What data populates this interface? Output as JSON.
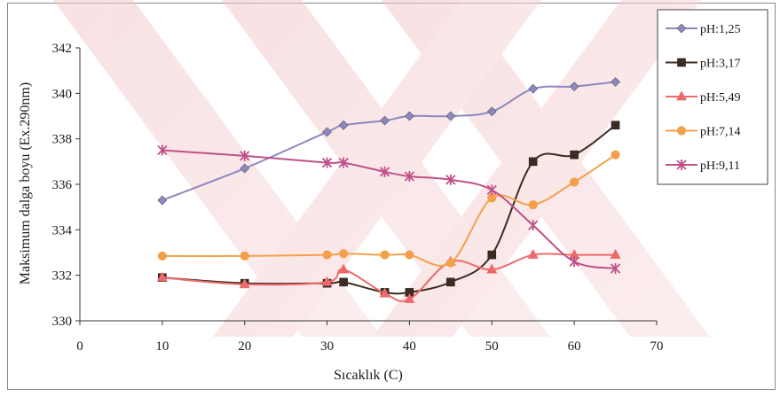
{
  "chart_data": {
    "type": "line",
    "xlabel": "Sıcaklık (C)",
    "ylabel": "Maksimum dalga boyu (Ex.290nm)",
    "xlim": [
      0,
      70
    ],
    "ylim": [
      330,
      342
    ],
    "xticks": [
      0,
      10,
      20,
      30,
      40,
      50,
      60,
      70
    ],
    "yticks": [
      330,
      332,
      334,
      336,
      338,
      340,
      342
    ],
    "grid": false,
    "smooth": true,
    "legend_position": "right",
    "series": [
      {
        "name": "pH:1,25",
        "color": "#8b88c2",
        "marker": "diamond",
        "x": [
          10,
          20,
          30,
          32,
          37,
          40,
          45,
          50,
          55,
          60,
          65
        ],
        "y": [
          335.3,
          336.7,
          338.3,
          338.6,
          338.8,
          339.0,
          339.0,
          339.2,
          340.2,
          340.3,
          340.5
        ]
      },
      {
        "name": "pH:3,17",
        "color": "#3e2b22",
        "marker": "square",
        "x": [
          10,
          20,
          30,
          32,
          37,
          40,
          45,
          50,
          55,
          60,
          65
        ],
        "y": [
          331.9,
          331.65,
          331.65,
          331.7,
          331.25,
          331.25,
          331.7,
          332.9,
          337.0,
          337.3,
          338.6
        ]
      },
      {
        "name": "pH:5,49",
        "color": "#ee6a6a",
        "marker": "triangle",
        "x": [
          10,
          20,
          30,
          32,
          37,
          40,
          45,
          50,
          55,
          60,
          65
        ],
        "y": [
          331.9,
          331.6,
          331.7,
          332.25,
          331.2,
          330.95,
          332.6,
          332.25,
          332.9,
          332.9,
          332.9
        ]
      },
      {
        "name": "pH:7,14",
        "color": "#f4a04a",
        "marker": "circle",
        "x": [
          10,
          20,
          30,
          32,
          37,
          40,
          45,
          50,
          55,
          60,
          65
        ],
        "y": [
          332.85,
          332.85,
          332.9,
          332.95,
          332.9,
          332.9,
          332.55,
          335.4,
          335.1,
          336.1,
          337.3
        ]
      },
      {
        "name": "pH:9,11",
        "color": "#c0508a",
        "marker": "star",
        "x": [
          10,
          20,
          30,
          32,
          37,
          40,
          45,
          50,
          55,
          60,
          65
        ],
        "y": [
          337.5,
          337.25,
          336.95,
          336.95,
          336.55,
          336.35,
          336.2,
          335.75,
          334.2,
          332.6,
          332.3
        ]
      }
    ]
  }
}
